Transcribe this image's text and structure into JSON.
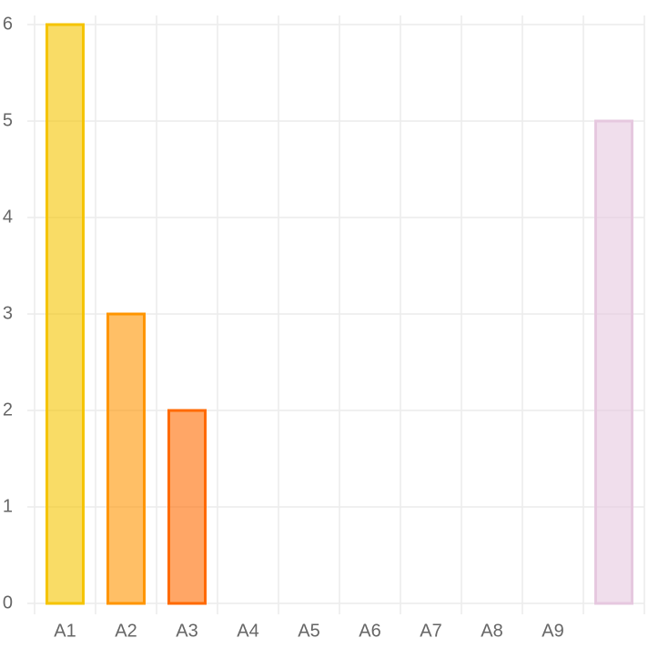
{
  "chart_data": {
    "type": "bar",
    "categories": [
      "A1",
      "A2",
      "A3",
      "A4",
      "A5",
      "A6",
      "A7",
      "A8",
      "A9",
      null
    ],
    "values": [
      6,
      3,
      2,
      0,
      0,
      0,
      0,
      0,
      0,
      5
    ],
    "colors": [
      "#f5c400",
      "#ff9500",
      "#ff6a00",
      "#b5e07a",
      "#5e7d3a",
      "#dce6d2",
      "#82c13e",
      "#b35fb3",
      "#7b3a6c",
      "#e6c8df"
    ],
    "ylim": [
      0,
      6
    ],
    "yticks": [
      0,
      1,
      2,
      3,
      4,
      5,
      6
    ],
    "grid": true
  }
}
